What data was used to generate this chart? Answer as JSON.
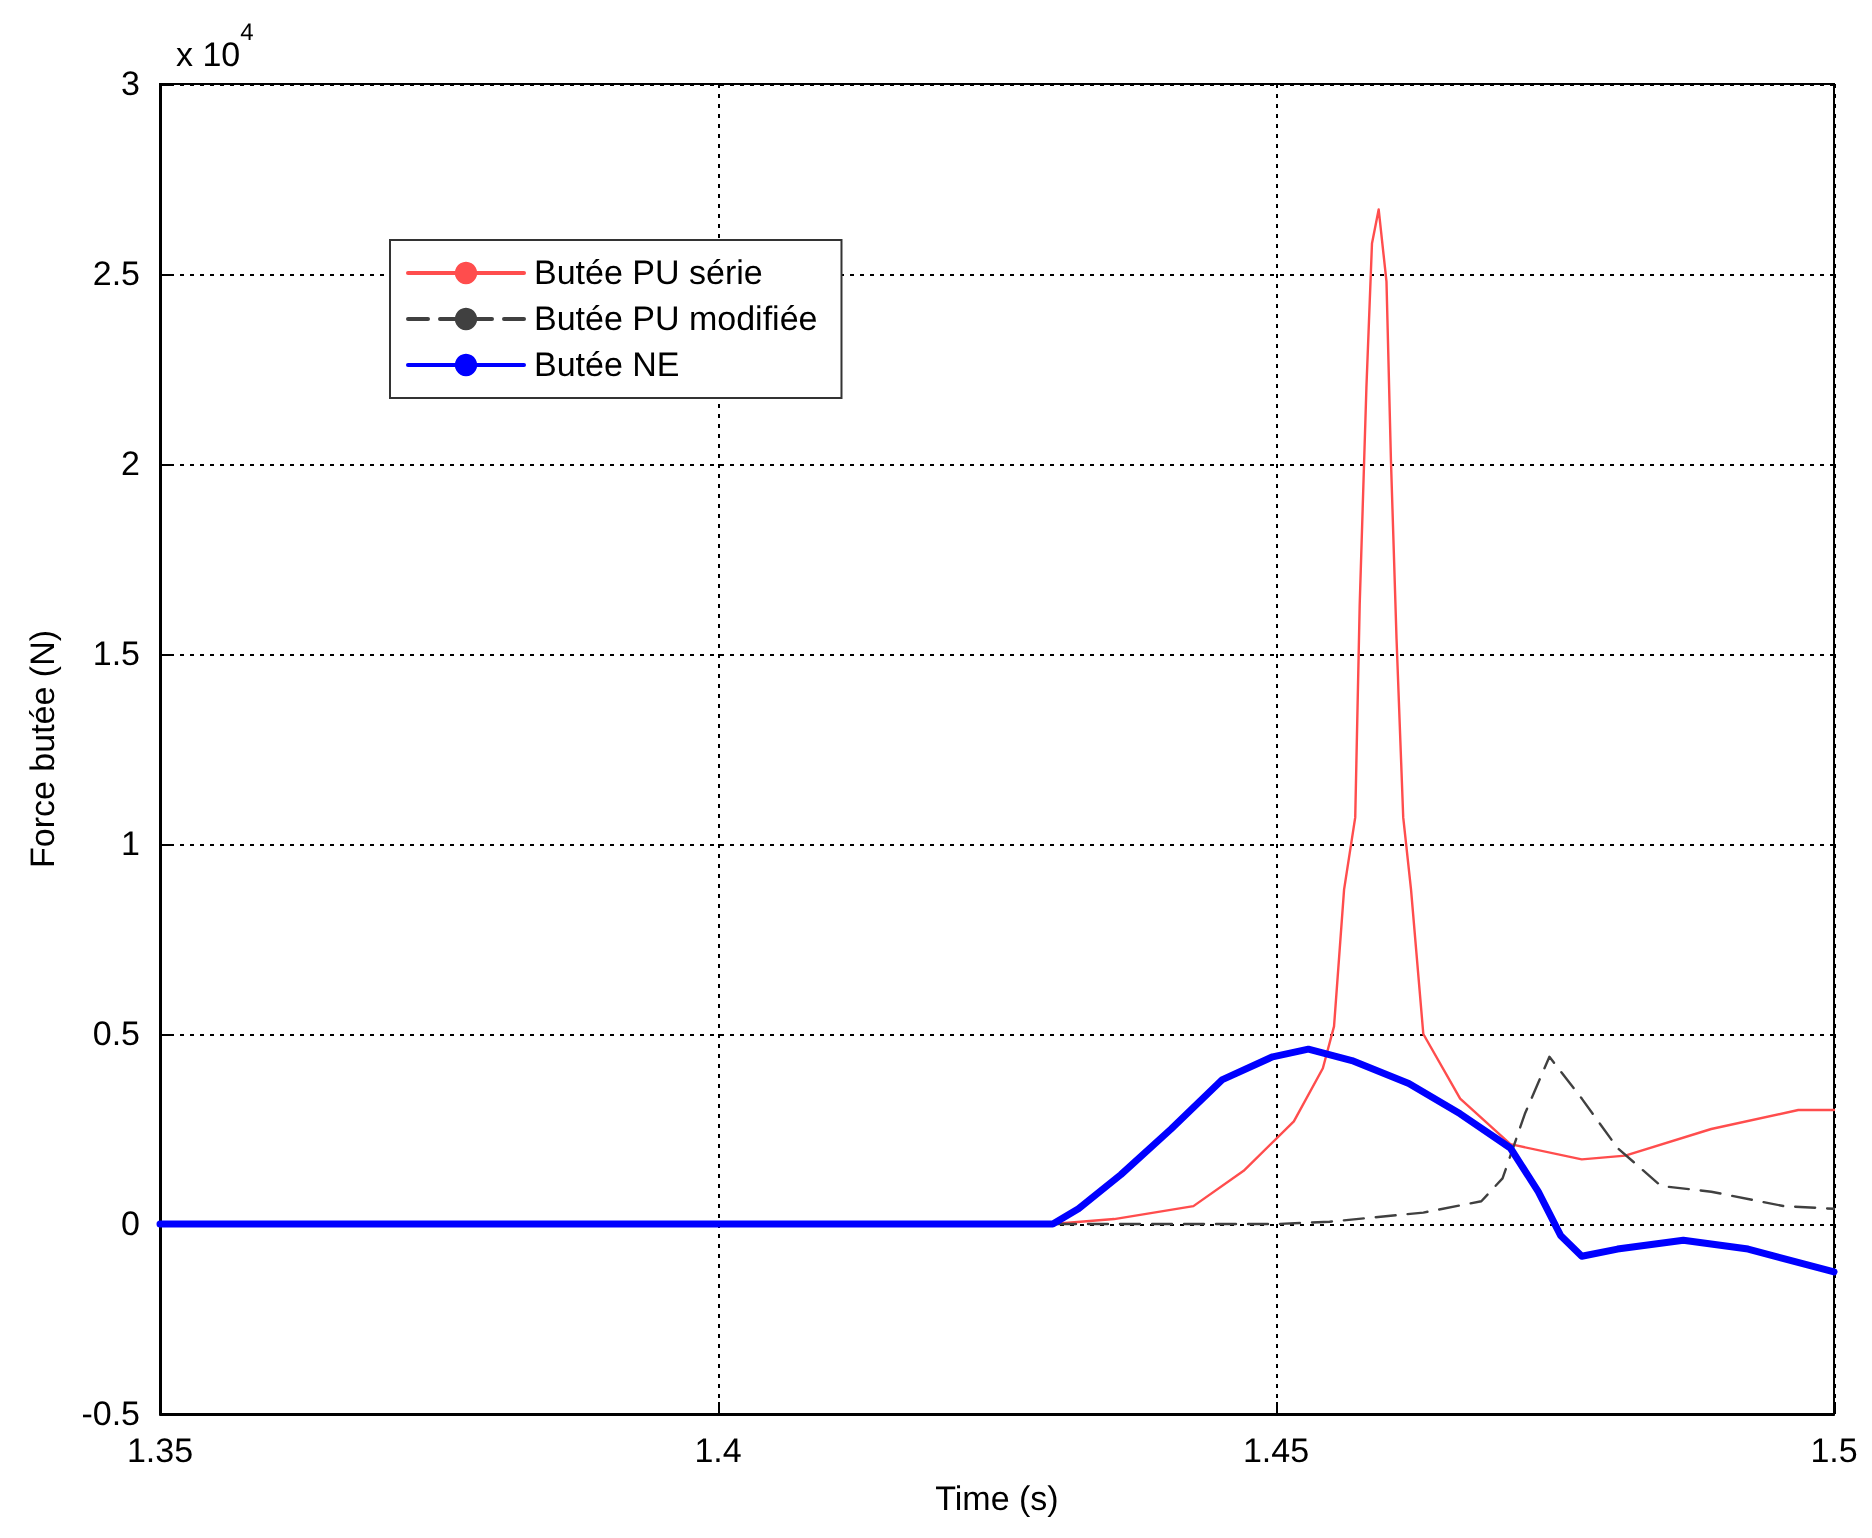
{
  "chart_data": {
    "type": "line",
    "xlabel": "Time (s)",
    "ylabel": "Force butée (N)",
    "annotations": [
      "x 10$^{4}$"
    ],
    "xlim": [
      1.35,
      1.5
    ],
    "xticks": [
      1.35,
      1.4,
      1.45,
      1.5
    ],
    "ylim": [
      -0.5,
      3
    ],
    "yticks": [
      -0.5,
      0,
      0.5,
      1,
      1.5,
      2,
      2.5,
      3
    ],
    "grid": true,
    "legend": "top left",
    "marker": "none",
    "series": [
      {
        "name": "Butée PU série",
        "color": "#ff4d4d",
        "line_style": "solid",
        "x": [
          1.35,
          1.43,
          1.4355,
          1.4426,
          1.4471,
          1.4516,
          1.4542,
          1.4552,
          1.4561,
          1.4571,
          1.4575,
          1.4581,
          1.4586,
          1.4592,
          1.4599,
          1.4603,
          1.4608,
          1.4614,
          1.4621,
          1.4632,
          1.4665,
          1.471,
          1.4774,
          1.4813,
          1.489,
          1.4968,
          1.5
        ],
        "values": [
          0,
          0,
          0.013,
          0.047,
          0.14,
          0.27,
          0.41,
          0.52,
          0.88,
          1.07,
          1.63,
          2.2,
          2.58,
          2.67,
          2.48,
          2.01,
          1.54,
          1.07,
          0.88,
          0.5,
          0.33,
          0.21,
          0.17,
          0.18,
          0.25,
          0.3,
          0.3
        ]
      },
      {
        "name": "Butée PU modifiée",
        "color": "#404040",
        "line_style": "dashed",
        "x": [
          1.35,
          1.45,
          1.4548,
          1.4632,
          1.4684,
          1.4703,
          1.4723,
          1.4745,
          1.4774,
          1.4806,
          1.4845,
          1.489,
          1.4955,
          1.5
        ],
        "values": [
          0,
          0,
          0.006,
          0.03,
          0.06,
          0.12,
          0.29,
          0.44,
          0.33,
          0.2,
          0.1,
          0.085,
          0.047,
          0.04
        ]
      },
      {
        "name": "Butée NE",
        "color": "#0000ff",
        "line_style": "solid",
        "x": [
          1.35,
          1.43,
          1.4323,
          1.4361,
          1.4406,
          1.4452,
          1.4497,
          1.4529,
          1.4568,
          1.4619,
          1.4665,
          1.471,
          1.4735,
          1.4755,
          1.4774,
          1.4806,
          1.4865,
          1.4923,
          1.5
        ],
        "values": [
          0,
          0,
          0.04,
          0.13,
          0.25,
          0.38,
          0.44,
          0.46,
          0.43,
          0.37,
          0.29,
          0.2,
          0.085,
          -0.03,
          -0.085,
          -0.066,
          -0.043,
          -0.066,
          -0.126
        ]
      }
    ]
  }
}
